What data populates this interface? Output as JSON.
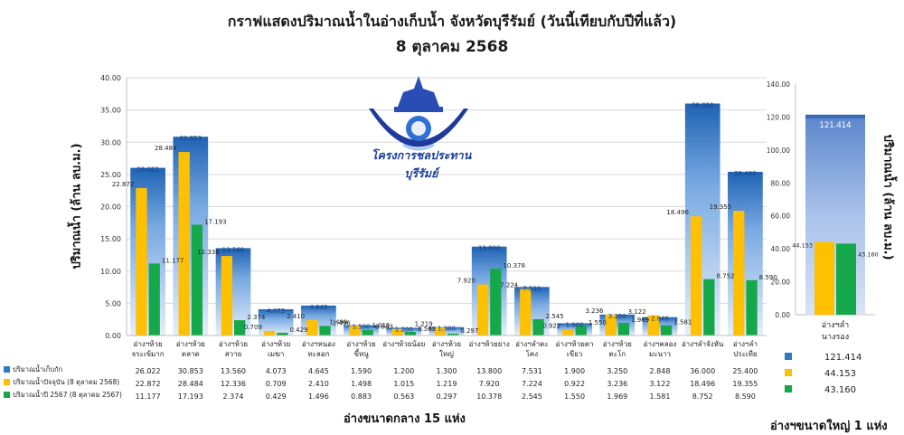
{
  "title_line1": "กราฟแสดงปริมาณน้ำในอ่างเก็บน้ำ จังหวัดบุรีรัมย์ (วันนี้เทียบกับปีที่แล้ว)",
  "title_line2": "8 ตุลาคม 2568",
  "logo_text": "โครงการชลประทานบุรีรัมย์",
  "colors": {
    "capacity": "#2f79c6",
    "capacity_light": "#dde8f8",
    "current": "#ffc000",
    "last_year": "#14a84b"
  },
  "chart_data": [
    {
      "type": "bar",
      "ylabel": "ปริมาณน้ำ (ล้าน ลบ.ม.)",
      "xlabel": "อ่างขนาดกลาง 15 แห่ง",
      "ylim": [
        0,
        40
      ],
      "yticks": [
        "0.00",
        "5.00",
        "10.00",
        "15.00",
        "20.00",
        "25.00",
        "30.00",
        "35.00",
        "40.00"
      ],
      "grid": true,
      "categories": [
        [
          "อ่างฯห้วย",
          "จระเข้มาก"
        ],
        [
          "อ่างฯห้วย",
          "ตลาด"
        ],
        [
          "อ่างฯห้วย",
          "สวาย"
        ],
        [
          "อ่างฯห้วย",
          "เมฆา"
        ],
        [
          "อ่างฯหนอง",
          "ทะลอก"
        ],
        [
          "อ่างฯห้วย",
          "ขี้หนู"
        ],
        [
          "อ่างฯห้วยน้อย"
        ],
        [
          "อ่างฯห้วย",
          "ใหญ่"
        ],
        [
          "อ่างฯห้วยยาง"
        ],
        [
          "อ่างฯลำตะ",
          "โคง"
        ],
        [
          "อ่างฯห้วยตา",
          "เขียว"
        ],
        [
          "อ่างฯห้วย",
          "ตะโก"
        ],
        [
          "อ่างฯคลอง",
          "มะนาว"
        ],
        [
          "อ่างฯลำจังหัน"
        ],
        [
          "อ่างฯลำ",
          "ประเทีย"
        ]
      ],
      "series": [
        {
          "name": "ปริมาณน้ำเก็บกัก",
          "values": [
            26.022,
            30.853,
            13.56,
            4.073,
            4.645,
            1.59,
            1.2,
            1.3,
            13.8,
            7.531,
            1.9,
            3.25,
            2.848,
            36.0,
            25.4
          ],
          "labels": [
            "26.022",
            "30.853",
            "13.560",
            "4.073",
            "4.645",
            "1.590",
            "1.200",
            "1.300",
            "13.800",
            "7.531",
            "1.900",
            "3.250",
            "2.848",
            "36.000",
            "25.400"
          ]
        },
        {
          "name": "ปริมาณน้ำปัจจุบัน (8 ตุลาคม 2568)",
          "values": [
            22.872,
            28.484,
            12.336,
            0.709,
            2.41,
            1.498,
            1.015,
            1.219,
            7.92,
            7.224,
            0.922,
            3.236,
            3.122,
            18.496,
            19.355
          ],
          "labels": [
            "22.872",
            "28.484",
            "12.336",
            "0.709",
            "2.410",
            "1.498",
            "1.015",
            "1.219",
            "7.920",
            "7.224",
            "0.922",
            "3.236",
            "3.122",
            "18.496",
            "19.355"
          ]
        },
        {
          "name": "ปริมาณน้ำปี 2567 (8 ตุลาคม 2567)",
          "values": [
            11.177,
            17.193,
            2.374,
            0.429,
            1.496,
            0.883,
            0.563,
            0.297,
            10.378,
            2.545,
            1.55,
            1.969,
            1.581,
            8.752,
            8.59
          ],
          "labels": [
            "11.177",
            "17.193",
            "2.374",
            "0.429",
            "1.496",
            "0.883",
            "0.563",
            "0.297",
            "10.378",
            "2.545",
            "1.550",
            "1.969",
            "1.581",
            "8.752",
            "8.590"
          ]
        }
      ]
    },
    {
      "type": "bar",
      "ylabel": "ปริมาณน้ำ (ล้าน ลบ.ม.)",
      "xlabel": "อ่างฯขนาดใหญ่ 1 แห่ง",
      "ylim": [
        0,
        140
      ],
      "yticks": [
        "0.00",
        "20.00",
        "40.00",
        "60.00",
        "80.00",
        "100.00",
        "120.00",
        "140.00"
      ],
      "grid": false,
      "categories": [
        [
          "อ่างฯลำ",
          "นางรอง"
        ]
      ],
      "series": [
        {
          "name": "ปริมาณน้ำเก็บกัก",
          "values": [
            121.414
          ],
          "labels": [
            "121.414"
          ]
        },
        {
          "name": "ปริมาณน้ำปัจจุบัน (8 ตุลาคม 2568)",
          "values": [
            44.153
          ],
          "labels": [
            "44.153"
          ]
        },
        {
          "name": "ปริมาณน้ำปี 2567 (8 ตุลาคม 2567)",
          "values": [
            43.16
          ],
          "labels": [
            "43.160"
          ]
        }
      ]
    }
  ]
}
